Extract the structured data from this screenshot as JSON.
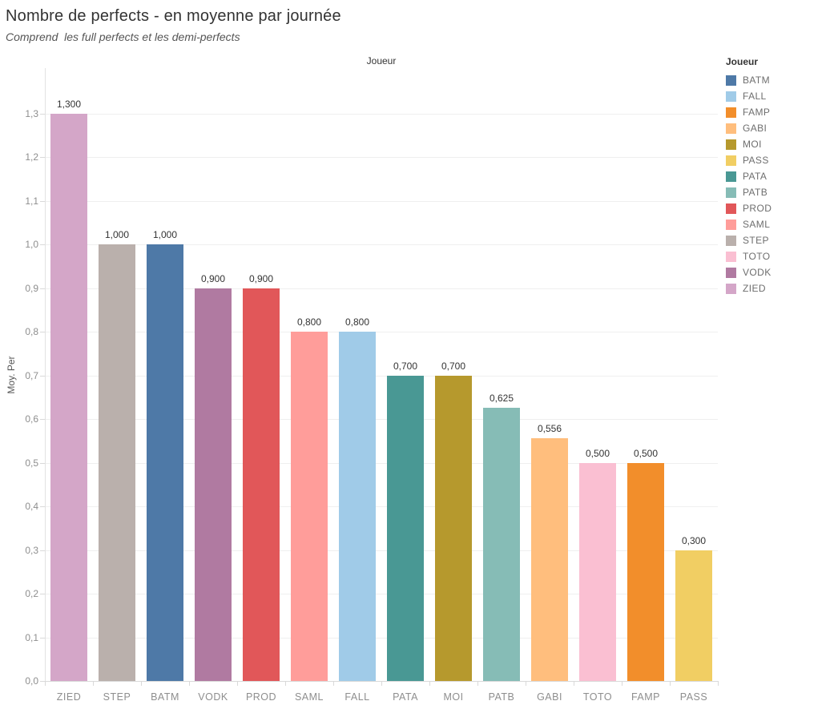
{
  "page": {
    "title": "Nombre de perfects - en moyenne par journée",
    "subtitle": "Comprend  les full perfects et les demi-perfects"
  },
  "pane_header": "Joueur",
  "legend": {
    "title": "Joueur",
    "items": [
      {
        "label": "BATM",
        "color": "#4E79A7"
      },
      {
        "label": "FALL",
        "color": "#A0CBE8"
      },
      {
        "label": "FAMP",
        "color": "#F28E2B"
      },
      {
        "label": "GABI",
        "color": "#FFBE7D"
      },
      {
        "label": "MOI",
        "color": "#B6992D"
      },
      {
        "label": "PASS",
        "color": "#F1CE63"
      },
      {
        "label": "PATA",
        "color": "#499894"
      },
      {
        "label": "PATB",
        "color": "#86BCB6"
      },
      {
        "label": "PROD",
        "color": "#E15759"
      },
      {
        "label": "SAML",
        "color": "#FF9D9A"
      },
      {
        "label": "STEP",
        "color": "#BAB0AC"
      },
      {
        "label": "TOTO",
        "color": "#FABFD2"
      },
      {
        "label": "VODK",
        "color": "#B07AA1"
      },
      {
        "label": "ZIED",
        "color": "#D4A6C8"
      }
    ]
  },
  "chart_data": {
    "type": "bar",
    "title": "Nombre de perfects - en moyenne par journée",
    "subtitle": "Comprend  les full perfects et les demi-perfects",
    "xlabel": "Joueur",
    "ylabel": "Moy. Per",
    "categories": [
      "ZIED",
      "STEP",
      "BATM",
      "VODK",
      "PROD",
      "SAML",
      "FALL",
      "PATA",
      "MOI",
      "PATB",
      "GABI",
      "TOTO",
      "FAMP",
      "PASS"
    ],
    "values": [
      1.3,
      1.0,
      1.0,
      0.9,
      0.9,
      0.8,
      0.8,
      0.7,
      0.7,
      0.625,
      0.556,
      0.5,
      0.5,
      0.3
    ],
    "value_labels": [
      "1,300",
      "1,000",
      "1,000",
      "0,900",
      "0,900",
      "0,800",
      "0,800",
      "0,700",
      "0,700",
      "0,625",
      "0,556",
      "0,500",
      "0,500",
      "0,300"
    ],
    "bar_colors": [
      "#D4A6C8",
      "#BAB0AC",
      "#4E79A7",
      "#B07AA1",
      "#E15759",
      "#FF9D9A",
      "#A0CBE8",
      "#499894",
      "#B6992D",
      "#86BCB6",
      "#FFBE7D",
      "#FABFD2",
      "#F28E2B",
      "#F1CE63"
    ],
    "y_ticks": [
      "0,0",
      "0,1",
      "0,2",
      "0,3",
      "0,4",
      "0,5",
      "0,6",
      "0,7",
      "0,8",
      "0,9",
      "1,0",
      "1,1",
      "1,2",
      "1,3"
    ],
    "y_tick_values": [
      0.0,
      0.1,
      0.2,
      0.3,
      0.4,
      0.5,
      0.6,
      0.7,
      0.8,
      0.9,
      1.0,
      1.1,
      1.2,
      1.3
    ],
    "ylim": [
      0,
      1.404
    ],
    "grid": true,
    "legend_position": "right",
    "legend_title": "Joueur"
  }
}
